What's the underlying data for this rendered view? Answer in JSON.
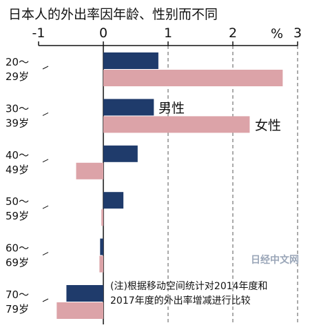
{
  "chart_data": {
    "type": "bar",
    "orientation": "horizontal",
    "title": "日本人的外出率因年龄、性别而不同",
    "unit": "%",
    "xlim": [
      -1,
      3
    ],
    "xticks": [
      "-1",
      "0",
      "1",
      "2",
      "3"
    ],
    "grid": "vertical dashed",
    "categories": [
      [
        "20～",
        "29岁"
      ],
      [
        "30～",
        "39岁"
      ],
      [
        "40～",
        "49岁"
      ],
      [
        "50～",
        "59岁"
      ],
      [
        "60～",
        "69岁"
      ],
      [
        "70～",
        "79岁"
      ]
    ],
    "series": [
      {
        "name": "男性",
        "color": "#1f3b6b",
        "values": [
          0.85,
          0.78,
          0.53,
          0.31,
          -0.05,
          -0.57
        ]
      },
      {
        "name": "女性",
        "color": "#dca3a8",
        "values": [
          2.77,
          2.26,
          -0.42,
          -0.03,
          -0.06,
          -0.72
        ]
      }
    ],
    "note": [
      "(注)根据移动空间统计对2014年度和",
      "2017年度的外出率增减进行比较"
    ],
    "watermark": "日经中文网"
  }
}
